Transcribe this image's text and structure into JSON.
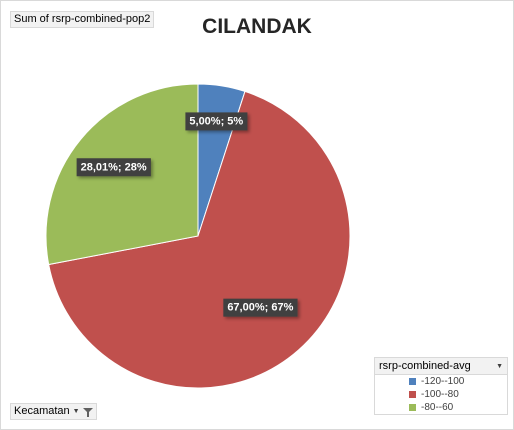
{
  "value_field": {
    "label": "Sum of rsrp-combined-pop2"
  },
  "axis_field": {
    "label": "Kecamatan",
    "dropdown_icon": "dropdown-arrow-icon",
    "filter_icon": "filter-icon"
  },
  "legend": {
    "title": "rsrp-combined-avg",
    "dropdown_icon": "dropdown-arrow-icon",
    "items": [
      {
        "label": "-120--100",
        "color": "#4f81bd"
      },
      {
        "label": "-100--80",
        "color": "#c0504d"
      },
      {
        "label": "-80--60",
        "color": "#9bbb59"
      }
    ]
  },
  "chart_data": {
    "type": "pie",
    "title": "CILANDAK",
    "categories": [
      "-120--100",
      "-100--80",
      "-80--60"
    ],
    "values": [
      5.0,
      67.0,
      28.01
    ],
    "data_labels": [
      "5,00%; 5%",
      "67,00%; 67%",
      "28,01%; 28%"
    ],
    "colors": [
      "#4f81bd",
      "#c0504d",
      "#9bbb59"
    ],
    "legend_position": "bottom-right"
  }
}
